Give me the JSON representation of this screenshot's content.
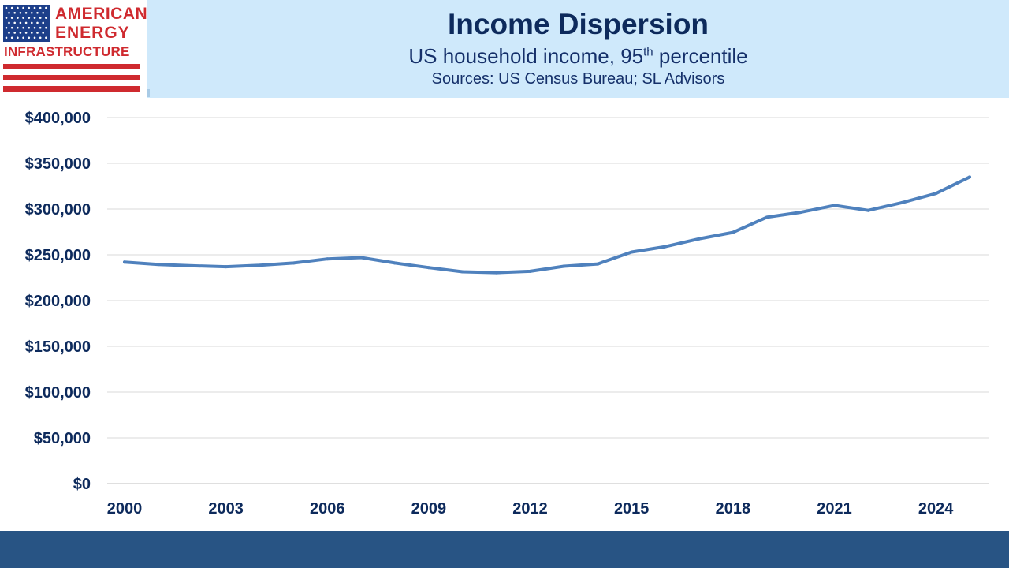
{
  "logo": {
    "line1": "AMERICAN",
    "line2": "ENERGY",
    "line3": "INFRASTRUCTURE",
    "colors": {
      "red": "#cf2a2f",
      "blue": "#1d3f8a"
    }
  },
  "header": {
    "title": "Income Dispersion",
    "subtitle_main": "US household income, 95",
    "subtitle_sup": "th",
    "subtitle_end": " percentile",
    "sources": "Sources: US Census Bureau; SL Advisors"
  },
  "colors": {
    "header_band": "#cfe9fb",
    "footer_band": "#285484",
    "line": "#4f81bd",
    "text": "#0d2a5c"
  },
  "chart_data": {
    "type": "line",
    "x": [
      2000,
      2001,
      2002,
      2003,
      2004,
      2005,
      2006,
      2007,
      2008,
      2009,
      2010,
      2011,
      2012,
      2013,
      2014,
      2015,
      2016,
      2017,
      2018,
      2019,
      2020,
      2021,
      2022,
      2023,
      2024,
      2025
    ],
    "series": [
      {
        "values": [
          242000,
          239500,
          238000,
          237000,
          238500,
          241000,
          245500,
          247000,
          241000,
          236000,
          231500,
          230500,
          232000,
          237500,
          240000,
          253000,
          259000,
          267500,
          274500,
          291000,
          296500,
          304000,
          298500,
          307000,
          317000,
          335000
        ]
      }
    ],
    "ylim": [
      0,
      400000
    ],
    "yticks": [
      0,
      50000,
      100000,
      150000,
      200000,
      250000,
      300000,
      350000,
      400000
    ],
    "ytick_labels": [
      "$0",
      "$50,000",
      "$100,000",
      "$150,000",
      "$200,000",
      "$250,000",
      "$300,000",
      "$350,000",
      "$400,000"
    ],
    "xticks": [
      2000,
      2003,
      2006,
      2009,
      2012,
      2015,
      2018,
      2021,
      2024
    ],
    "xtick_labels": [
      "2000",
      "2003",
      "2006",
      "2009",
      "2012",
      "2015",
      "2018",
      "2021",
      "2024"
    ],
    "grid": true
  }
}
